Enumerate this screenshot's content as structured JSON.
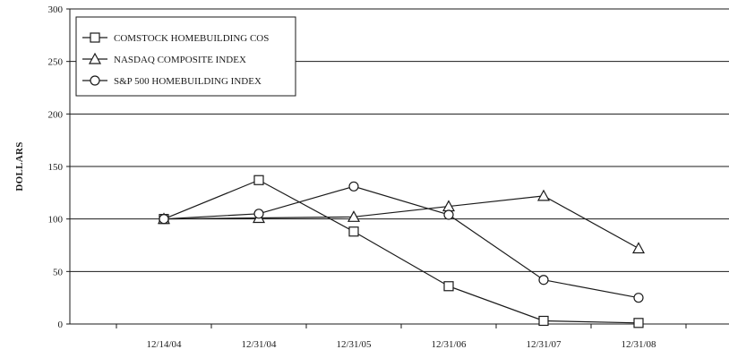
{
  "chart_data": {
    "type": "line",
    "title": "",
    "xlabel": "",
    "ylabel": "DOLLARS",
    "categories": [
      "12/14/04",
      "12/31/04",
      "12/31/05",
      "12/31/06",
      "12/31/07",
      "12/31/08"
    ],
    "ylim": [
      0,
      300
    ],
    "yticks": [
      0,
      50,
      100,
      150,
      200,
      250,
      300
    ],
    "grid": true,
    "legend_position": "top-left",
    "series": [
      {
        "name": "COMSTOCK HOMEBUILDING COS",
        "marker": "square",
        "values": [
          100,
          137,
          88,
          36,
          3,
          1
        ]
      },
      {
        "name": "NASDAQ COMPOSITE INDEX",
        "marker": "triangle",
        "values": [
          100,
          101,
          102,
          112,
          122,
          72
        ]
      },
      {
        "name": "S&P 500 HOMEBUILDING INDEX",
        "marker": "circle",
        "values": [
          100,
          105,
          131,
          104,
          42,
          25
        ]
      }
    ],
    "colors": {
      "line": "#1a1a1a",
      "grid": "#1a1a1a",
      "marker_fill": "#ffffff"
    }
  }
}
